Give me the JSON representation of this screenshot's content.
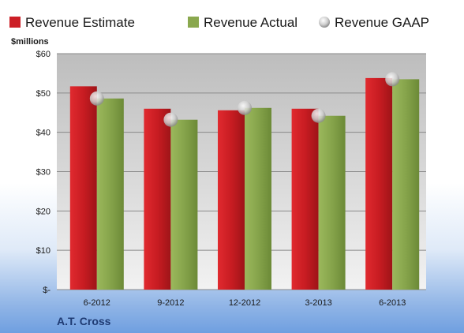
{
  "chart_data": {
    "type": "bar",
    "categories": [
      "6-2012",
      "9-2012",
      "12-2012",
      "3-2013",
      "6-2013"
    ],
    "series": [
      {
        "name": "Revenue Estimate",
        "color": "#cc1f26",
        "values": [
          51.7,
          46.0,
          45.6,
          46.0,
          53.8
        ]
      },
      {
        "name": "Revenue Actual",
        "color": "#8aa84e",
        "values": [
          48.6,
          43.2,
          46.2,
          44.2,
          53.5
        ]
      }
    ],
    "markers": {
      "name": "Revenue GAAP",
      "color": "#c8c8c8",
      "values": [
        48.6,
        43.2,
        46.2,
        44.2,
        53.5
      ]
    },
    "ylabel": "$millions",
    "ylim": [
      0,
      60
    ],
    "yticks": [
      {
        "value": 0,
        "label": "$-"
      },
      {
        "value": 10,
        "label": "$10"
      },
      {
        "value": 20,
        "label": "$20"
      },
      {
        "value": 30,
        "label": "$30"
      },
      {
        "value": 40,
        "label": "$40"
      },
      {
        "value": 50,
        "label": "$50"
      },
      {
        "value": 60,
        "label": "$60"
      }
    ],
    "grid": true,
    "legend_position": "top",
    "company": "A.T. Cross"
  }
}
